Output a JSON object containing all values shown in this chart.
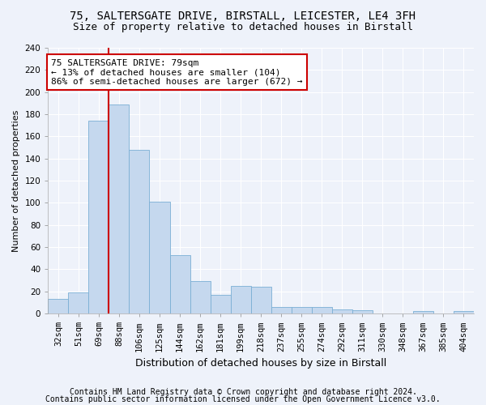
{
  "title1": "75, SALTERSGATE DRIVE, BIRSTALL, LEICESTER, LE4 3FH",
  "title2": "Size of property relative to detached houses in Birstall",
  "xlabel": "Distribution of detached houses by size in Birstall",
  "ylabel": "Number of detached properties",
  "bar_color": "#c5d8ee",
  "bar_edge_color": "#7aafd4",
  "bins": [
    "32sqm",
    "51sqm",
    "69sqm",
    "88sqm",
    "106sqm",
    "125sqm",
    "144sqm",
    "162sqm",
    "181sqm",
    "199sqm",
    "218sqm",
    "237sqm",
    "255sqm",
    "274sqm",
    "292sqm",
    "311sqm",
    "330sqm",
    "348sqm",
    "367sqm",
    "385sqm",
    "404sqm"
  ],
  "values": [
    13,
    19,
    174,
    189,
    148,
    101,
    53,
    29,
    17,
    25,
    24,
    6,
    6,
    6,
    4,
    3,
    0,
    0,
    2,
    0,
    2
  ],
  "ylim": [
    0,
    240
  ],
  "yticks": [
    0,
    20,
    40,
    60,
    80,
    100,
    120,
    140,
    160,
    180,
    200,
    220,
    240
  ],
  "property_line_bin_index": 3.0,
  "annotation_text": "75 SALTERSGATE DRIVE: 79sqm\n← 13% of detached houses are smaller (104)\n86% of semi-detached houses are larger (672) →",
  "annotation_box_color": "#ffffff",
  "annotation_box_edge": "#cc0000",
  "property_line_color": "#cc0000",
  "background_color": "#eef2fa",
  "footer1": "Contains HM Land Registry data © Crown copyright and database right 2024.",
  "footer2": "Contains public sector information licensed under the Open Government Licence v3.0.",
  "grid_color": "#ffffff",
  "title1_fontsize": 10,
  "title2_fontsize": 9,
  "xlabel_fontsize": 9,
  "ylabel_fontsize": 8,
  "tick_fontsize": 7.5,
  "annotation_fontsize": 8,
  "footer_fontsize": 7
}
